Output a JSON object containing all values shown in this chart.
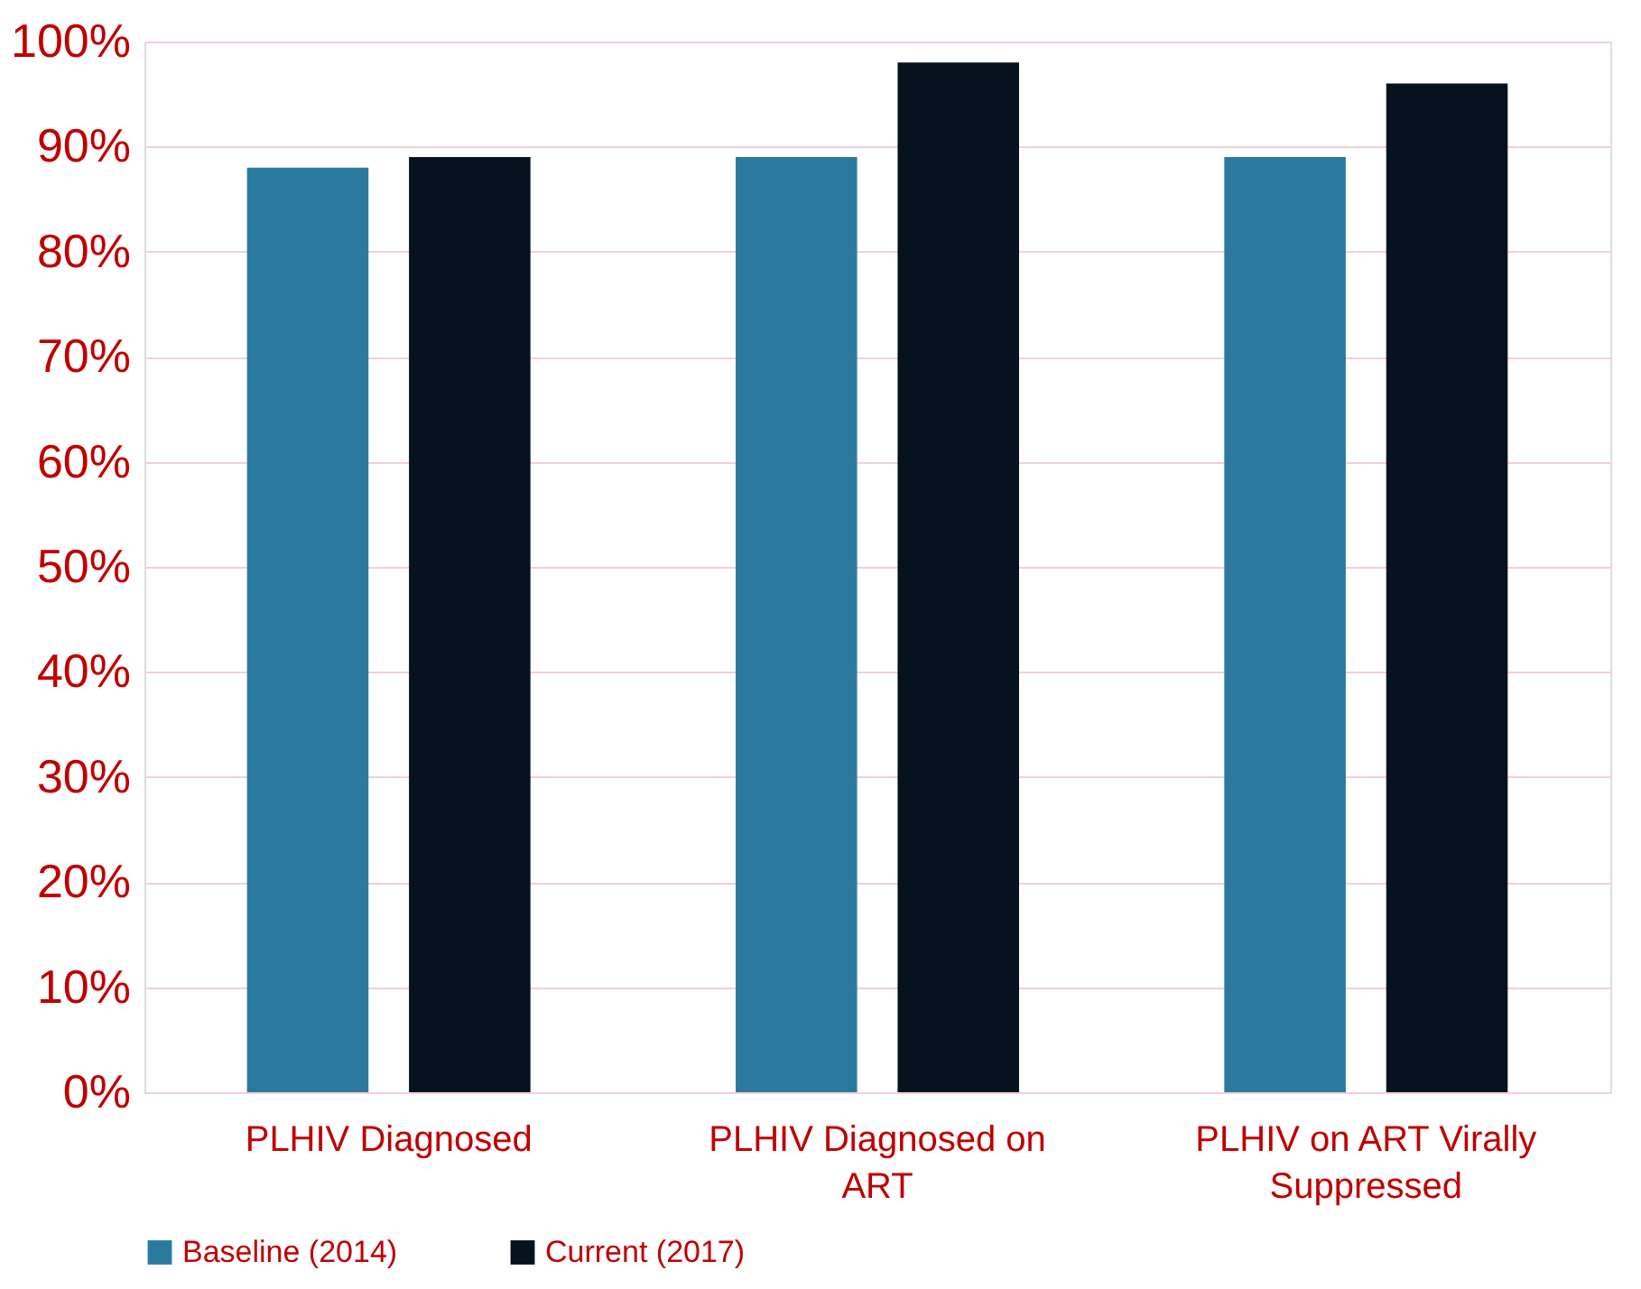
{
  "chart_data": {
    "type": "bar",
    "categories": [
      "PLHIV Diagnosed",
      "PLHIV Diagnosed on ART",
      "PLHIV on ART Virally Suppressed"
    ],
    "series": [
      {
        "name": "Baseline (2014)",
        "color": "#2b7a9e",
        "values": [
          88,
          89,
          89
        ]
      },
      {
        "name": "Current (2017)",
        "color": "#06121d",
        "values": [
          89,
          98,
          96
        ]
      }
    ],
    "ylim": [
      0,
      100
    ],
    "yticks": [
      {
        "value": 0,
        "label": "0%"
      },
      {
        "value": 10,
        "label": "10%"
      },
      {
        "value": 20,
        "label": "20%"
      },
      {
        "value": 30,
        "label": "30%"
      },
      {
        "value": 40,
        "label": "40%"
      },
      {
        "value": 50,
        "label": "50%"
      },
      {
        "value": 60,
        "label": "60%"
      },
      {
        "value": 70,
        "label": "70%"
      },
      {
        "value": 80,
        "label": "80%"
      },
      {
        "value": 90,
        "label": "90%"
      },
      {
        "value": 100,
        "label": "100%"
      }
    ],
    "grid": "y",
    "legend": "bottom"
  }
}
